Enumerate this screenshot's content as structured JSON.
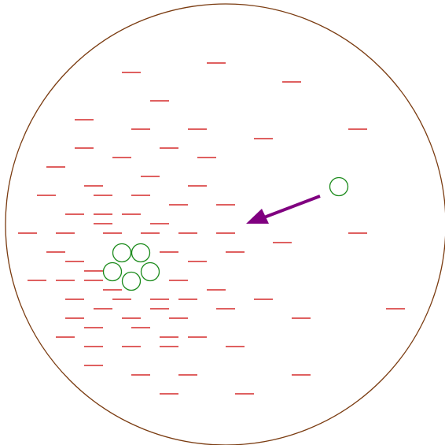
{
  "colors": {
    "background": "#ffffff",
    "boundary": "#7a3b10",
    "dash": "#cc0000",
    "ring": "#1a8a1a",
    "arrow": "#800080"
  },
  "items": {
    "boundary": "circle-outline",
    "dash": "red-horizontal-dash",
    "ring": "green-circle",
    "arrow": "purple-arrow"
  }
}
